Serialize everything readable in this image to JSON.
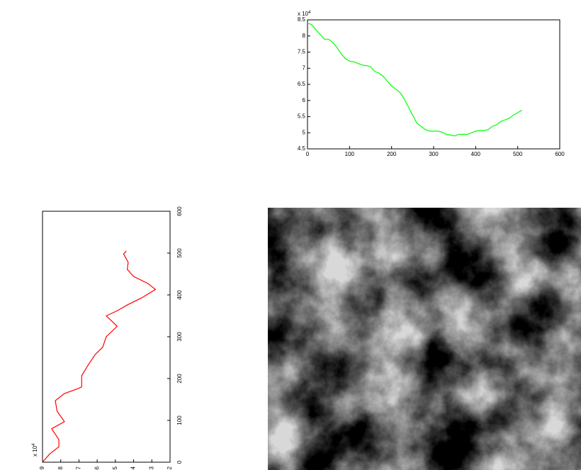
{
  "chart_data": [
    {
      "type": "line",
      "orientation": "normal",
      "color": "#00ff00",
      "multiplier": "x 10",
      "multiplier_exp": "4",
      "x": [
        0,
        10,
        20,
        30,
        40,
        50,
        60,
        70,
        80,
        90,
        100,
        110,
        120,
        130,
        140,
        150,
        160,
        170,
        180,
        190,
        200,
        210,
        220,
        230,
        240,
        250,
        260,
        270,
        280,
        290,
        300,
        310,
        320,
        330,
        340,
        350,
        360,
        370,
        380,
        390,
        400,
        410,
        420,
        430,
        440,
        450,
        460,
        470,
        480,
        490,
        500,
        510
      ],
      "values": [
        8.4,
        8.35,
        8.2,
        8.05,
        7.9,
        7.9,
        7.8,
        7.65,
        7.45,
        7.3,
        7.22,
        7.2,
        7.15,
        7.1,
        7.08,
        7.05,
        6.9,
        6.85,
        6.75,
        6.6,
        6.45,
        6.35,
        6.25,
        6.05,
        5.8,
        5.55,
        5.3,
        5.2,
        5.1,
        5.05,
        5.05,
        5.05,
        5.02,
        4.95,
        4.93,
        4.9,
        4.95,
        4.95,
        4.95,
        5.0,
        5.05,
        5.07,
        5.07,
        5.1,
        5.2,
        5.25,
        5.35,
        5.4,
        5.45,
        5.55,
        5.62,
        5.7
      ],
      "xlim": [
        0,
        600
      ],
      "xticks": [
        0,
        100,
        200,
        300,
        400,
        500,
        600
      ],
      "ylim": [
        4.5,
        8.5
      ],
      "yticks": [
        4.5,
        5,
        5.5,
        6,
        6.5,
        7,
        7.5,
        8,
        8.5
      ]
    },
    {
      "type": "line",
      "orientation": "rotated",
      "color": "#ff0000",
      "multiplier": "x 10",
      "multiplier_exp": "4",
      "x": [
        0,
        20,
        37,
        54,
        80,
        97,
        122,
        147,
        164,
        176,
        180,
        207,
        232,
        258,
        275,
        300,
        325,
        350,
        362,
        376,
        393,
        413,
        427,
        444,
        461,
        478,
        498,
        505
      ],
      "values": [
        9,
        8.6,
        8.1,
        8.1,
        8.5,
        7.8,
        8.2,
        8.3,
        7.8,
        7.05,
        6.85,
        6.85,
        6.5,
        6.1,
        5.7,
        5.5,
        4.9,
        5.5,
        4.9,
        4.35,
        3.55,
        2.8,
        3.2,
        4,
        4.35,
        4.3,
        4.55,
        4.4
      ],
      "xlim": [
        0,
        600
      ],
      "xticks": [
        0,
        100,
        200,
        300,
        400,
        500,
        600
      ],
      "ylim": [
        2,
        9
      ],
      "yticks": [
        2,
        3,
        4,
        5,
        6,
        7,
        8,
        9
      ]
    }
  ]
}
